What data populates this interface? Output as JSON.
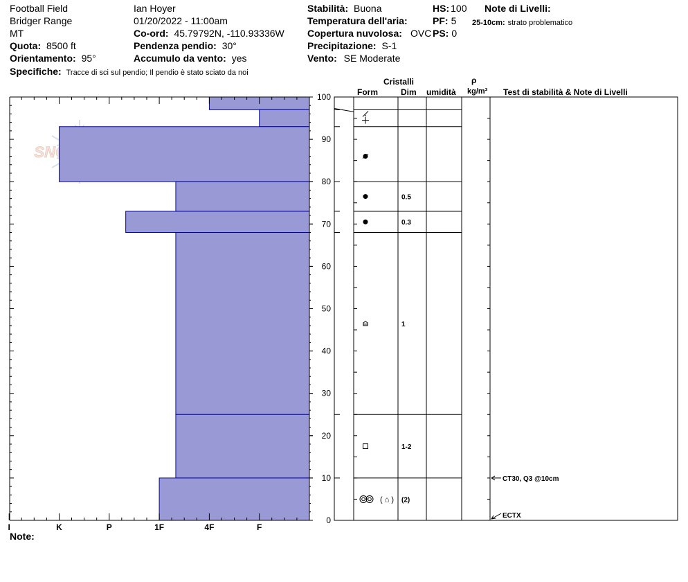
{
  "header": {
    "location": "Football Field",
    "range": "Bridger Range",
    "state": "MT",
    "elevation_label": "Quota:",
    "elevation_value": "8500 ft",
    "aspect_label": "Orientamento:",
    "aspect_value": "95°",
    "specifics_label": "Specifiche:",
    "specifics_value": "Tracce di sci sul pendio;  Il pendio è stato sciato da noi",
    "observer": "Ian Hoyer",
    "datetime": "01/20/2022 - 11:00am",
    "coord_label": "Co-ord:",
    "coord_value": "45.79792N, -110.93336W",
    "slope_label": "Pendenza pendio:",
    "slope_value": "30°",
    "wind_loading_label": "Accumulo da vento:",
    "wind_loading_value": "yes",
    "stability_label": "Stabilità:",
    "stability_value": "Buona",
    "air_temp_label": "Temperatura dell'aria:",
    "cloud_label": "Copertura nuvolosa:",
    "cloud_value": "OVC",
    "precip_label": "Precipitazione:",
    "precip_value": "S-1",
    "wind_label": "Vento:",
    "wind_value": "SE Moderate",
    "hs_label": "HS:",
    "hs_value": "100",
    "pf_label": "PF:",
    "pf_value": "5",
    "ps_label": "PS:",
    "ps_value": "0",
    "layer_notes_label": "Note di Livelli:",
    "layer_note_depth": "25-10cm:",
    "layer_note_text": "strato problematico"
  },
  "columns": {
    "crystals": "Cristalli",
    "form": "Form",
    "size": "Dim",
    "moisture": "umidità",
    "rho": "ρ",
    "density_unit": "kg/m³",
    "tests": "Test di stabilità & Note di Livelli"
  },
  "notes_label": "Note:",
  "watermark": "SNOWPILOT",
  "chart_data": {
    "type": "bar",
    "orientation": "horizontal",
    "title": "",
    "xlabel": "",
    "ylabel": "",
    "ylim": [
      0,
      100
    ],
    "y_ticks": [
      "0",
      "10",
      "20",
      "30",
      "40",
      "50",
      "60",
      "70",
      "80",
      "90",
      "100"
    ],
    "hardness_scale": [
      "I",
      "K",
      "P",
      "1F",
      "4F",
      "F"
    ],
    "hardness_positions": {
      "I": 6,
      "K": 5,
      "P": 4,
      "1F": 3,
      "4F": 2,
      "F": 1
    },
    "bar_color": "#9999d6",
    "bar_edge_color": "#0000aa",
    "layers": [
      {
        "top": 100,
        "bottom": 97,
        "hardness": "4F",
        "hardness_value": 2
      },
      {
        "top": 97,
        "bottom": 93,
        "hardness": "F",
        "hardness_value": 1
      },
      {
        "top": 93,
        "bottom": 80,
        "hardness": "K",
        "hardness_value": 5
      },
      {
        "top": 80,
        "bottom": 73,
        "hardness": "1F-",
        "hardness_value": 2.67
      },
      {
        "top": 73,
        "bottom": 68,
        "hardness": "P-",
        "hardness_value": 3.67
      },
      {
        "top": 68,
        "bottom": 25,
        "hardness": "1F-",
        "hardness_value": 2.67
      },
      {
        "top": 25,
        "bottom": 10,
        "hardness": "1F-",
        "hardness_value": 2.67
      },
      {
        "top": 10,
        "bottom": 0,
        "hardness": "1F",
        "hardness_value": 3
      }
    ],
    "grain_rows": [
      {
        "y": 96,
        "form": "decomposing-fragments",
        "size": ""
      },
      {
        "y": 94.5,
        "form": "precipitation-particles",
        "size": ""
      },
      {
        "y": 86,
        "form": "melt-freeze-rounded",
        "size": ""
      },
      {
        "y": 76.5,
        "form": "rounded-grains",
        "size": "0.5"
      },
      {
        "y": 70.5,
        "form": "rounded-grains",
        "size": "0.3"
      },
      {
        "y": 46.5,
        "form": "faceted-rounded",
        "size": "1"
      },
      {
        "y": 17.5,
        "form": "faceted-crystals",
        "size": "1-2"
      },
      {
        "y": 5,
        "form": "depth-hoar-and-faceted-rounded",
        "size": "(2)",
        "secondary_marks": "( ⌂ )"
      }
    ],
    "tests": [
      {
        "depth": 10,
        "label": "CT30, Q3 @10cm"
      },
      {
        "depth": 0,
        "label": "ECTX"
      }
    ]
  }
}
